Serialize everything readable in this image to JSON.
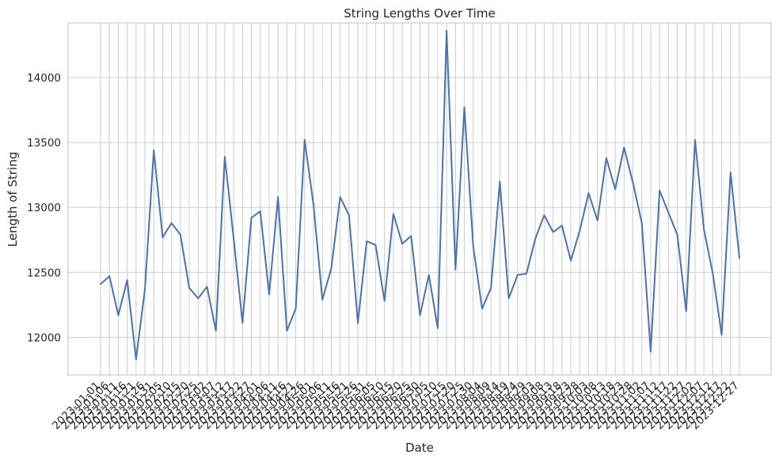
{
  "chart_data": {
    "type": "line",
    "title": "String Lengths Over Time",
    "xlabel": "Date",
    "ylabel": "Length of String",
    "ylim": [
      11710,
      14420
    ],
    "y_ticks": [
      12000,
      12500,
      13000,
      13500,
      14000
    ],
    "grid": true,
    "colors": {
      "line": "#4c72b0",
      "grid": "#cccccc",
      "frame": "#cccccc"
    },
    "series": [
      {
        "x": [
          "2023-01-01",
          "2023-01-06",
          "2023-01-11",
          "2023-01-16",
          "2023-01-21",
          "2023-01-26",
          "2023-01-31",
          "2023-02-05",
          "2023-02-10",
          "2023-02-15",
          "2023-02-20",
          "2023-02-25",
          "2023-03-02",
          "2023-03-07",
          "2023-03-12",
          "2023-03-17",
          "2023-03-22",
          "2023-03-27",
          "2023-04-01",
          "2023-04-06",
          "2023-04-11",
          "2023-04-16",
          "2023-04-21",
          "2023-04-26",
          "2023-05-01",
          "2023-05-06",
          "2023-05-11",
          "2023-05-16",
          "2023-05-21",
          "2023-05-26",
          "2023-05-31",
          "2023-06-05",
          "2023-06-10",
          "2023-06-15",
          "2023-06-20",
          "2023-06-25",
          "2023-06-30",
          "2023-07-05",
          "2023-07-10",
          "2023-07-15",
          "2023-07-20",
          "2023-07-25",
          "2023-07-30",
          "2023-08-04",
          "2023-08-09",
          "2023-08-14",
          "2023-08-19",
          "2023-08-24",
          "2023-08-29",
          "2023-09-03",
          "2023-09-08",
          "2023-09-13",
          "2023-09-18",
          "2023-09-23",
          "2023-09-28",
          "2023-10-03",
          "2023-10-08",
          "2023-10-13",
          "2023-10-18",
          "2023-10-23",
          "2023-10-28",
          "2023-11-02",
          "2023-11-07",
          "2023-11-12",
          "2023-11-17",
          "2023-11-22",
          "2023-11-27",
          "2023-12-02",
          "2023-12-07",
          "2023-12-12",
          "2023-12-17",
          "2023-12-22",
          "2023-12-27"
        ],
        "values": [
          12410,
          12470,
          12170,
          12440,
          11830,
          12370,
          13440,
          12770,
          12880,
          12790,
          12380,
          12300,
          12390,
          12050,
          13390,
          12760,
          12110,
          12920,
          12970,
          12330,
          13080,
          12050,
          12220,
          13520,
          13020,
          12290,
          12530,
          13080,
          12940,
          12110,
          12740,
          12710,
          12280,
          12950,
          12720,
          12780,
          12170,
          12480,
          12070,
          14360,
          12520,
          13770,
          12700,
          12220,
          12380,
          13200,
          12300,
          12480,
          12490,
          12760,
          12940,
          12810,
          12860,
          12590,
          12820,
          13110,
          12900,
          13380,
          13140,
          13460,
          13190,
          12880,
          11890,
          13130,
          12960,
          12790,
          12200,
          13520,
          12830,
          12490,
          12020,
          13270,
          12610
        ]
      }
    ]
  }
}
